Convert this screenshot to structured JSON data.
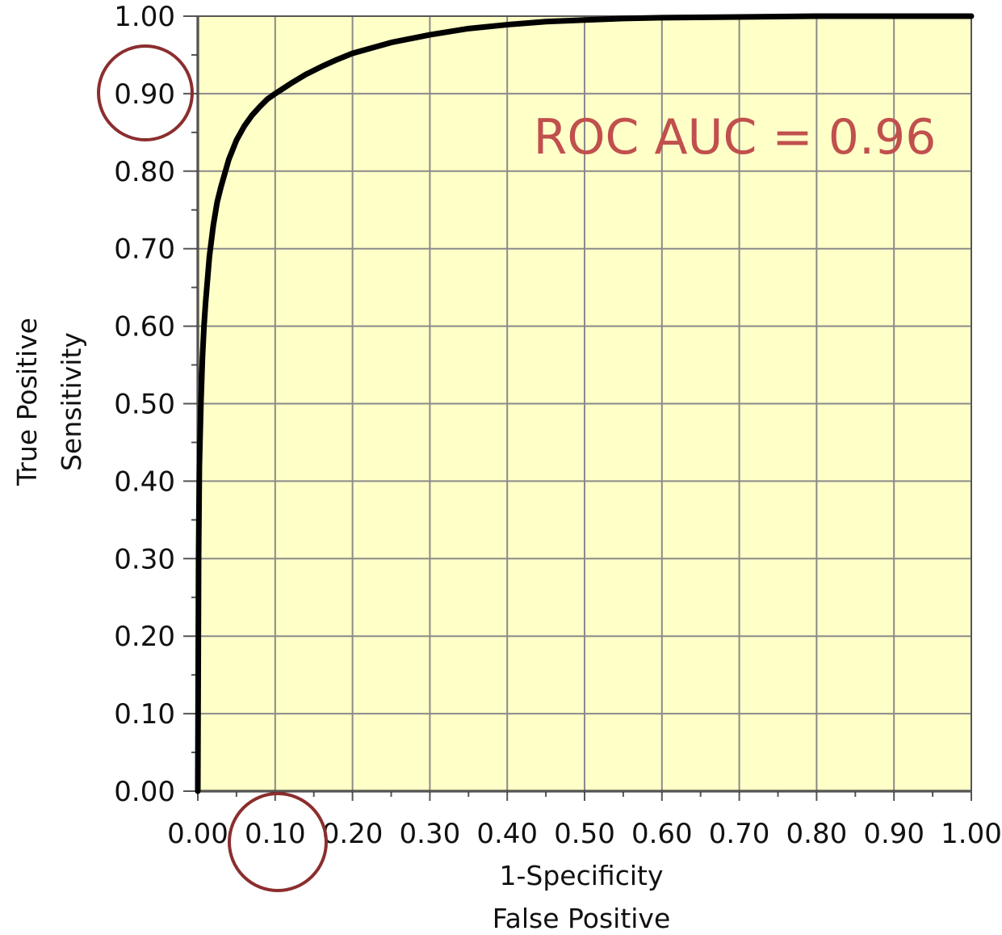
{
  "chart_data": {
    "type": "line",
    "title": "",
    "xlabel": [
      "1-Specificity",
      "False Positive"
    ],
    "ylabel": [
      "True Positive",
      "Sensitivity"
    ],
    "xlim": [
      0,
      1
    ],
    "ylim": [
      0,
      1
    ],
    "xticks": [
      "0.00",
      "0.10",
      "0.20",
      "0.30",
      "0.40",
      "0.50",
      "0.60",
      "0.70",
      "0.80",
      "0.90",
      "1.00"
    ],
    "yticks": [
      "0.00",
      "0.10",
      "0.20",
      "0.30",
      "0.40",
      "0.50",
      "0.60",
      "0.70",
      "0.80",
      "0.90",
      "1.00"
    ],
    "grid": true,
    "colors": {
      "plot_background": "#ffffc8",
      "grid": "#8a8a8a",
      "curve": "#000000",
      "annotation": "#c0504d",
      "highlight_circle": "#8b2e2e"
    },
    "series": [
      {
        "x": [
          0,
          0.001,
          0.002,
          0.004,
          0.006,
          0.008,
          0.01,
          0.015,
          0.02,
          0.025,
          0.03,
          0.04,
          0.05,
          0.06,
          0.07,
          0.08,
          0.09,
          0.1,
          0.12,
          0.14,
          0.16,
          0.18,
          0.2,
          0.25,
          0.3,
          0.35,
          0.4,
          0.45,
          0.5,
          0.55,
          0.6,
          0.7,
          0.8,
          0.9,
          1.0
        ],
        "y": [
          0,
          0.3,
          0.42,
          0.5,
          0.56,
          0.6,
          0.63,
          0.69,
          0.73,
          0.76,
          0.78,
          0.815,
          0.84,
          0.858,
          0.872,
          0.883,
          0.893,
          0.9,
          0.913,
          0.925,
          0.935,
          0.944,
          0.952,
          0.966,
          0.976,
          0.984,
          0.989,
          0.993,
          0.995,
          0.997,
          0.998,
          0.999,
          1.0,
          1.0,
          1.0
        ]
      }
    ],
    "annotations": [
      {
        "text": "ROC AUC = 0.96"
      }
    ],
    "highlighted_ticks": {
      "x": "0.10",
      "y": "0.90"
    }
  }
}
